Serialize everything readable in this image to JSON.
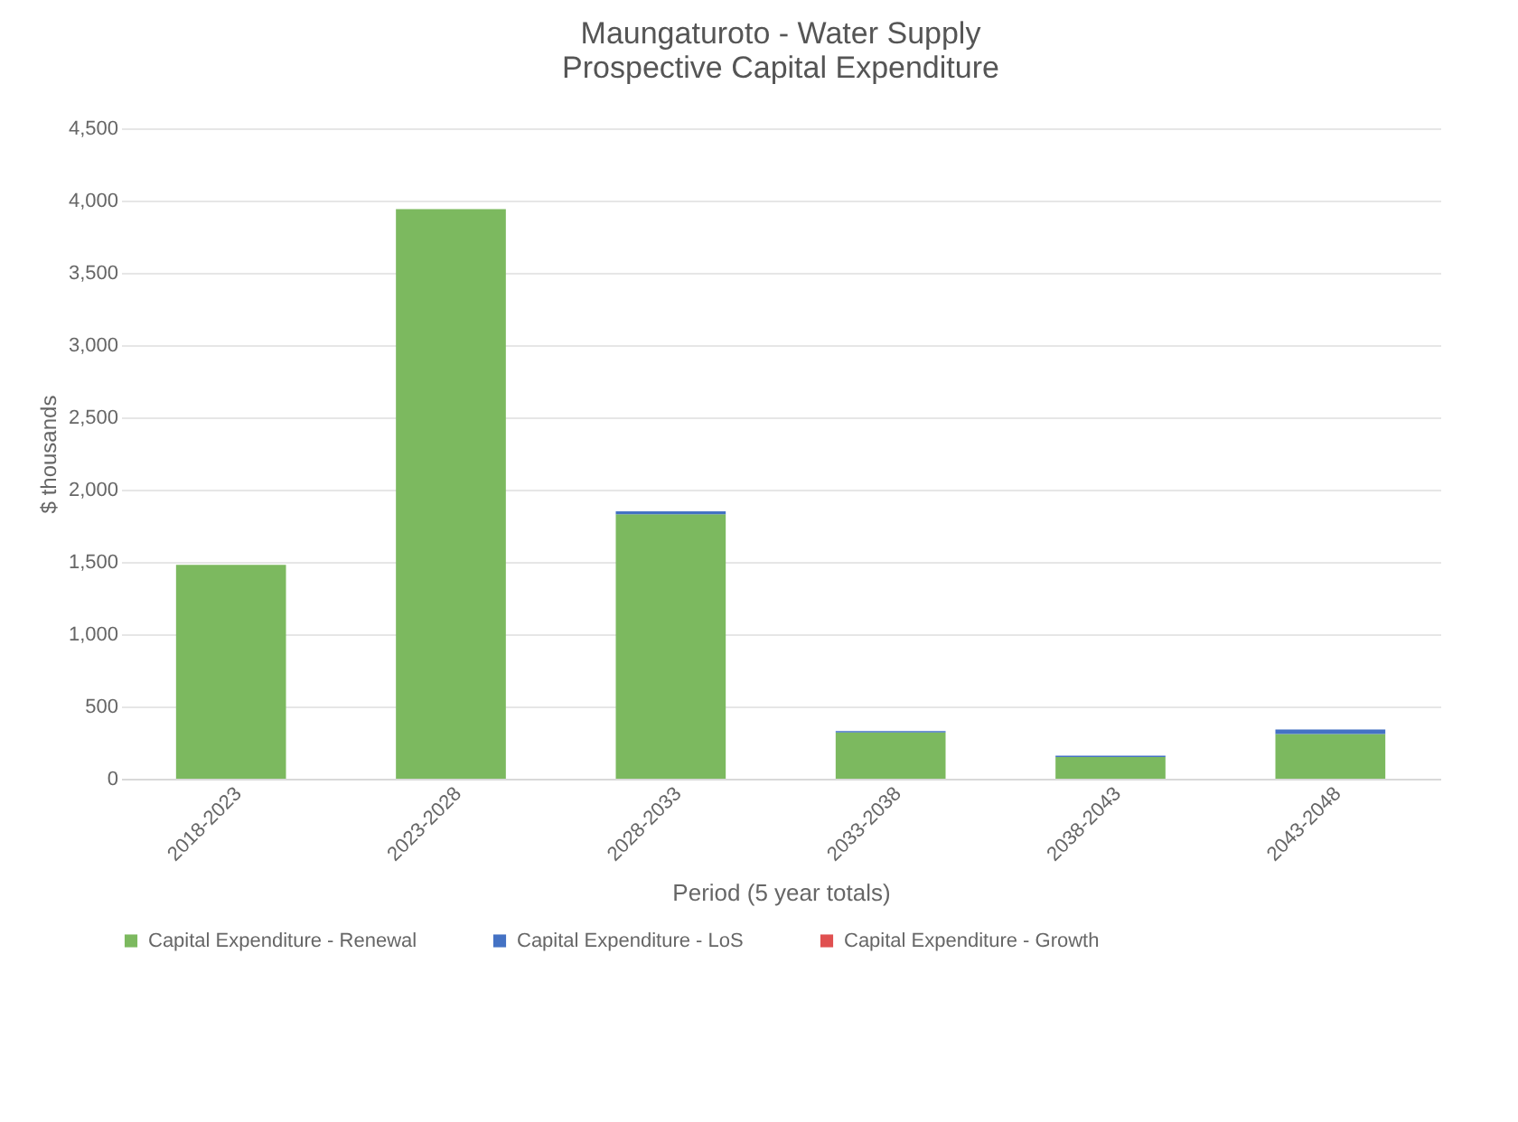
{
  "chart_data": {
    "type": "bar",
    "title": [
      "Maungaturoto - Water Supply",
      "Prospective Capital Expenditure"
    ],
    "xlabel": "Period (5 year totals)",
    "ylabel": "$ thousands",
    "categories": [
      "2018-2023",
      "2023-2028",
      "2028-2033",
      "2033-2038",
      "2038-2043",
      "2043-2048"
    ],
    "stacked": true,
    "series": [
      {
        "name": "Capital Expenditure - Renewal",
        "color": "#7cb95f",
        "values": [
          1480,
          3940,
          1830,
          320,
          150,
          310
        ]
      },
      {
        "name": "Capital Expenditure - LoS",
        "color": "#4472c4",
        "values": [
          0,
          0,
          20,
          10,
          10,
          30
        ]
      },
      {
        "name": "Capital Expenditure - Growth",
        "color": "#e05050",
        "values": [
          0,
          0,
          0,
          0,
          0,
          0
        ]
      }
    ],
    "ylim": [
      0,
      4500
    ],
    "yticks": [
      0,
      500,
      {
        "value": 1000,
        "label": "1,000"
      },
      {
        "value": 1500,
        "label": "1,500"
      },
      {
        "value": 2000,
        "label": "2,000"
      },
      {
        "value": 2500,
        "label": "2,500"
      },
      {
        "value": 3000,
        "label": "3,000"
      },
      {
        "value": 3500,
        "label": "3,500"
      },
      {
        "value": 4000,
        "label": "4,000"
      },
      {
        "value": 4500,
        "label": "4,500"
      }
    ],
    "grid": "y",
    "legend": "bottom"
  }
}
